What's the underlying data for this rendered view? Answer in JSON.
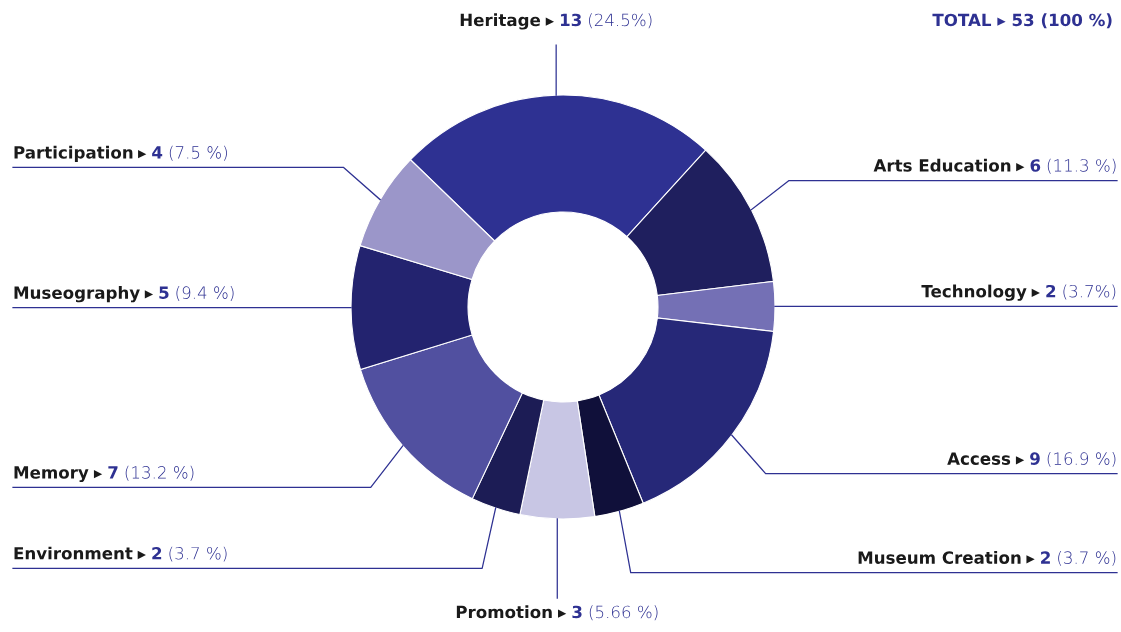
{
  "chart_data": {
    "type": "donut",
    "categories": [
      "Heritage",
      "Arts Education",
      "Technology",
      "Access",
      "Museum Creation",
      "Promotion",
      "Environment",
      "Memory",
      "Museography",
      "Participation"
    ],
    "values": [
      13,
      6,
      2,
      9,
      2,
      3,
      2,
      7,
      5,
      4
    ],
    "value_labels": [
      "▸ 13 (24.5%)",
      "▸ 6 (11.3 %)",
      "▸ 2 (3.7%)",
      "▸ 9 (16.9 %)",
      "▸ 2 (3.7 %)",
      "▸ 3 (5.66 %)",
      "▸ 2 (3.7 %)",
      "▸ 7 (13.2 %)",
      "▸ 5 (9.4 %)",
      "▸ 4 (7.5 %)"
    ],
    "colors": [
      "#2e3192",
      "#1f1f5e",
      "#7470b5",
      "#262878",
      "#10103a",
      "#c8c6e4",
      "#1c1c55",
      "#5150a0",
      "#23236f",
      "#9b96c9"
    ],
    "annotations": [
      "TOTAL ▸ 53 (100 %)"
    ]
  }
}
